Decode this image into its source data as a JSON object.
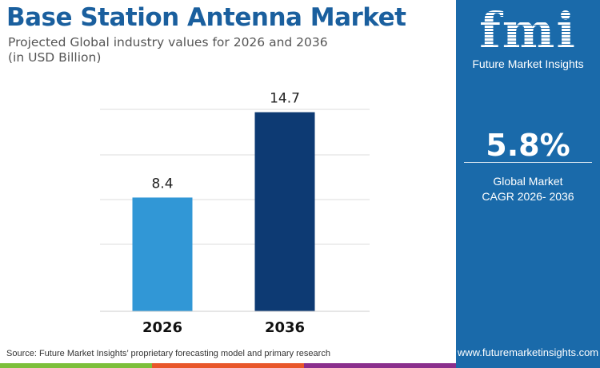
{
  "title": "Base Station Antenna Market",
  "subtitle_line1": "Projected Global industry values for 2026 and 2036",
  "subtitle_line2": "(in USD Billion)",
  "chart_data": {
    "type": "bar",
    "categories": [
      "2026",
      "2036"
    ],
    "values": [
      8.4,
      14.7
    ],
    "data_labels": [
      "8.4",
      "14.7"
    ],
    "bar_colors": [
      "#3197d6",
      "#0d3a73"
    ],
    "ylim": [
      0,
      16.5
    ],
    "grid": true
  },
  "panel": {
    "logo_text": "fmi",
    "logo_name": "Future Market Insights",
    "cagr_value": "5.8%",
    "cagr_label_line1": "Global Market",
    "cagr_label_line2": "CAGR 2026- 2036",
    "url": "www.futuremarketinsights.com",
    "bg_color": "#1a6aaa"
  },
  "source": "Source: Future Market Insights’ proprietary forecasting model and primary research",
  "stripe_colors": [
    "#7cbf3a",
    "#e8562a",
    "#8a2e8c"
  ]
}
